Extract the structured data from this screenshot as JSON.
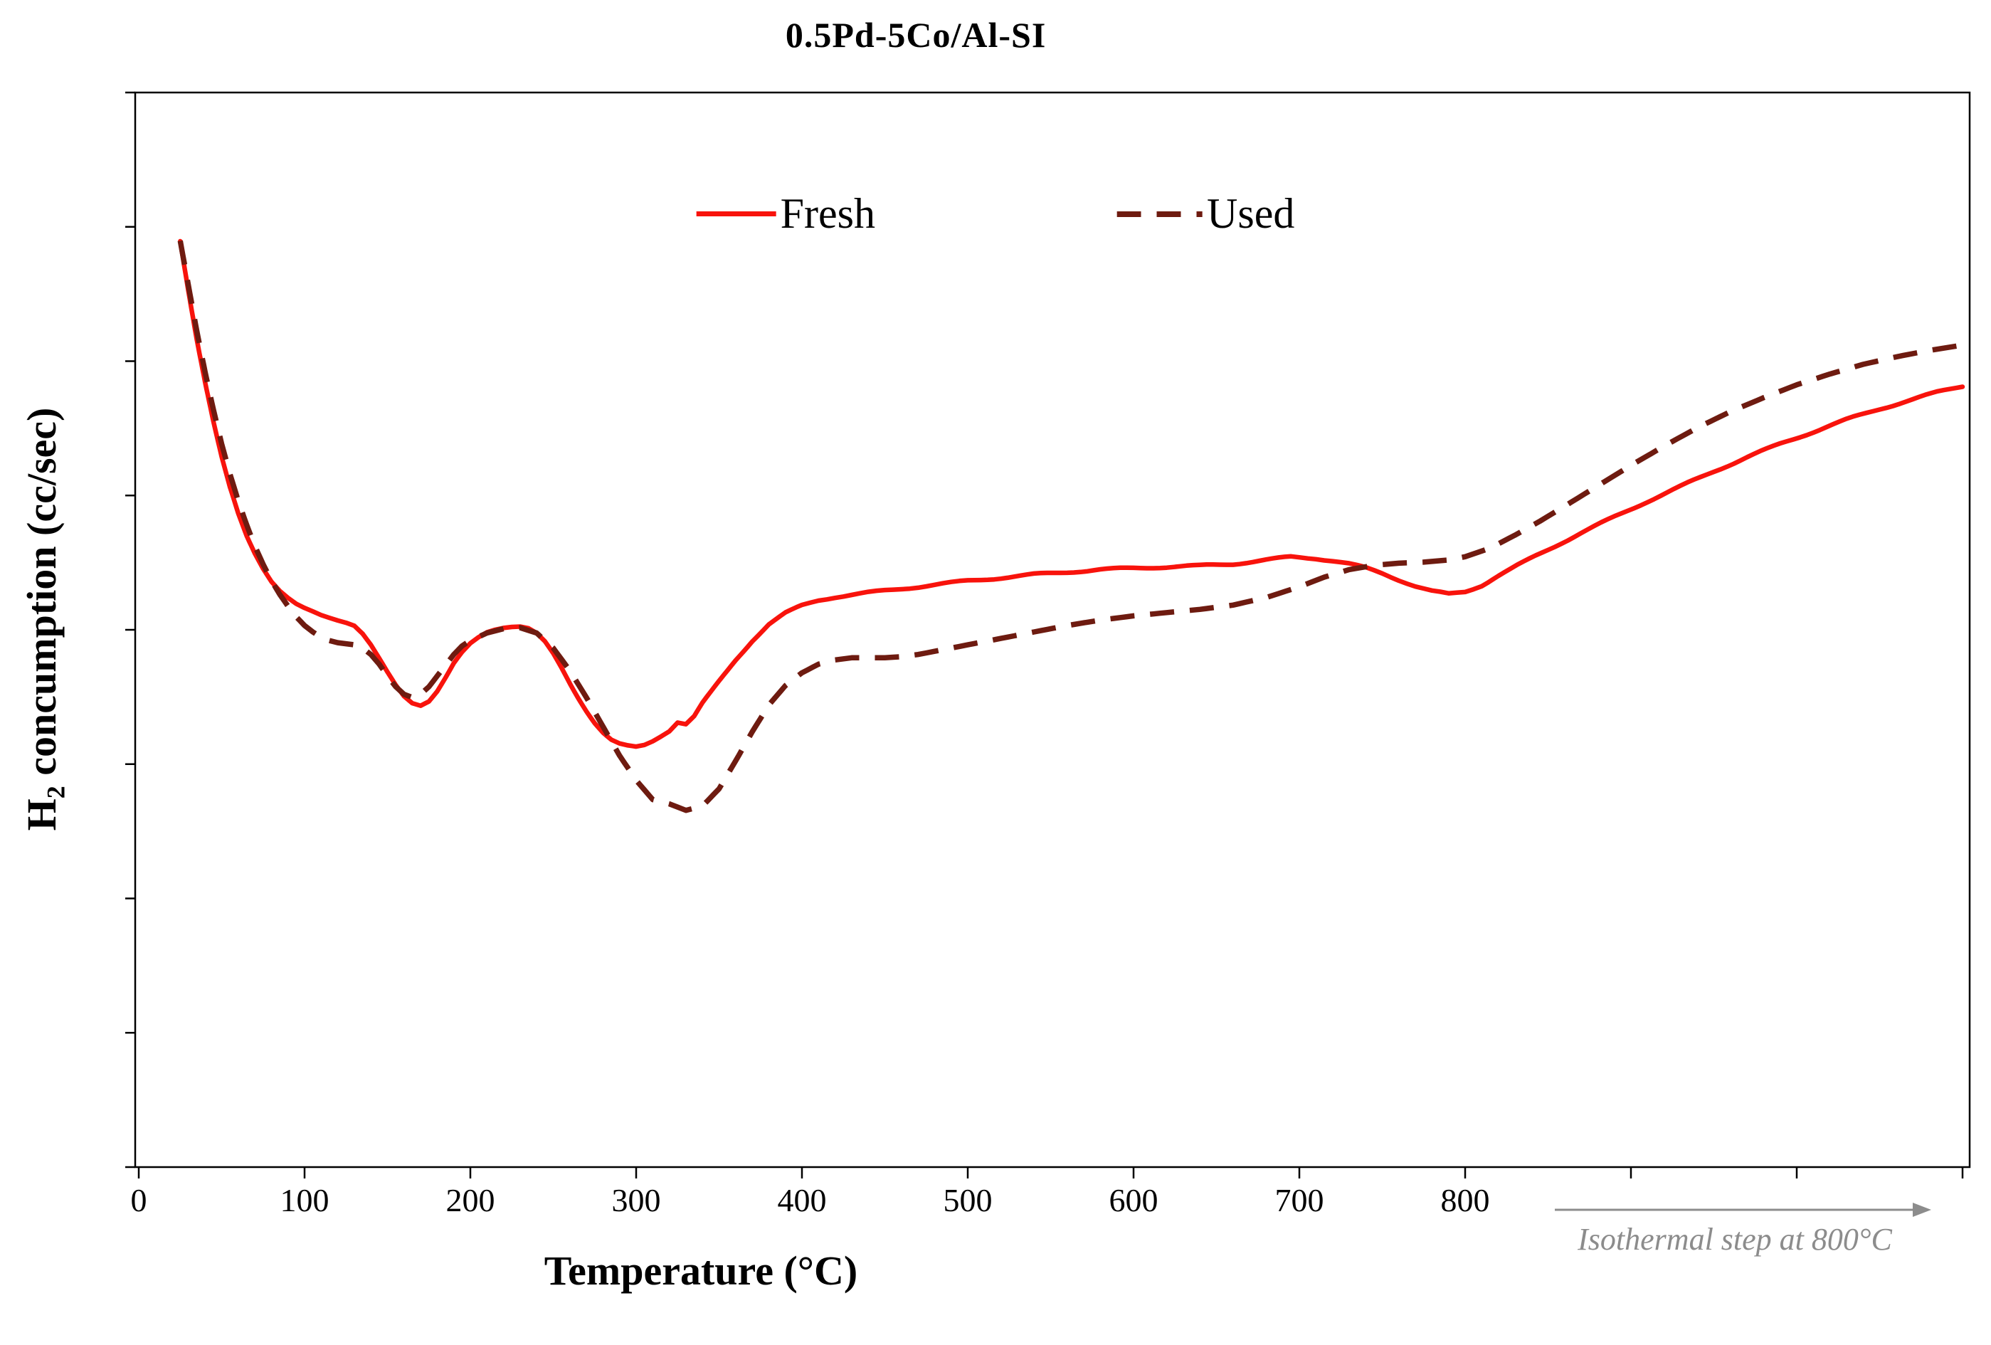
{
  "title": "0.5Pd-5Co/Al-SI",
  "y_axis_label": {
    "prefix": "H",
    "subscript": "2",
    "rest": " concumption (cc/sec)"
  },
  "x_axis_label": "Temperature (°C)",
  "annotation": {
    "text": "Isothermal step at 800°C",
    "color": "#8c8c8c"
  },
  "legend": [
    {
      "label": "Fresh",
      "color": "#f8130c",
      "style": "solid"
    },
    {
      "label": "Used",
      "color": "#6e1b10",
      "style": "dashed"
    }
  ],
  "chart_data": {
    "type": "line",
    "title": "0.5Pd-5Co/Al-SI",
    "xlabel": "Temperature (°C)",
    "ylabel": "H2 concumption (cc/sec)",
    "x_ticks_labeled": [
      0,
      100,
      200,
      300,
      400,
      500,
      600,
      700,
      800
    ],
    "x_ticks_unlabeled": [
      900,
      1000,
      1100
    ],
    "y_tick_labels": [],
    "y_tick_count": 9,
    "xlim": [
      0,
      1105
    ],
    "ylim": [
      0,
      1
    ],
    "grid": false,
    "legend_position": "top-center-inside",
    "x_axis_note": "axis continues unlabeled past 800 for isothermal step at 800°C",
    "y_units": "arbitrary (tick marks shown without numeric labels)",
    "series": [
      {
        "name": "Fresh",
        "color": "#f8130c",
        "style": "solid",
        "points": [
          [
            25,
            0.862
          ],
          [
            30,
            0.815
          ],
          [
            35,
            0.77
          ],
          [
            40,
            0.73
          ],
          [
            45,
            0.693
          ],
          [
            50,
            0.66
          ],
          [
            55,
            0.632
          ],
          [
            60,
            0.608
          ],
          [
            65,
            0.588
          ],
          [
            70,
            0.572
          ],
          [
            75,
            0.558
          ],
          [
            80,
            0.546
          ],
          [
            85,
            0.537
          ],
          [
            90,
            0.53
          ],
          [
            95,
            0.524
          ],
          [
            100,
            0.52
          ],
          [
            105,
            0.517
          ],
          [
            110,
            0.514
          ],
          [
            115,
            0.512
          ],
          [
            120,
            0.51
          ],
          [
            125,
            0.508
          ],
          [
            130,
            0.505
          ],
          [
            135,
            0.497
          ],
          [
            140,
            0.486
          ],
          [
            145,
            0.473
          ],
          [
            150,
            0.46
          ],
          [
            155,
            0.448
          ],
          [
            160,
            0.438
          ],
          [
            165,
            0.432
          ],
          [
            170,
            0.43
          ],
          [
            175,
            0.434
          ],
          [
            180,
            0.443
          ],
          [
            185,
            0.455
          ],
          [
            190,
            0.468
          ],
          [
            195,
            0.478
          ],
          [
            200,
            0.486
          ],
          [
            205,
            0.492
          ],
          [
            210,
            0.497
          ],
          [
            215,
            0.5
          ],
          [
            220,
            0.502
          ],
          [
            225,
            0.503
          ],
          [
            230,
            0.503
          ],
          [
            235,
            0.501
          ],
          [
            240,
            0.496
          ],
          [
            245,
            0.488
          ],
          [
            250,
            0.477
          ],
          [
            255,
            0.464
          ],
          [
            260,
            0.45
          ],
          [
            265,
            0.437
          ],
          [
            270,
            0.425
          ],
          [
            275,
            0.414
          ],
          [
            280,
            0.405
          ],
          [
            285,
            0.398
          ],
          [
            290,
            0.394
          ],
          [
            295,
            0.392
          ],
          [
            300,
            0.391
          ],
          [
            305,
            0.393
          ],
          [
            310,
            0.397
          ],
          [
            315,
            0.402
          ],
          [
            320,
            0.407
          ],
          [
            325,
            0.415
          ],
          [
            330,
            0.413
          ],
          [
            335,
            0.42
          ],
          [
            340,
            0.432
          ],
          [
            350,
            0.452
          ],
          [
            360,
            0.472
          ],
          [
            370,
            0.49
          ],
          [
            380,
            0.505
          ],
          [
            390,
            0.515
          ],
          [
            400,
            0.522
          ],
          [
            410,
            0.527
          ],
          [
            420,
            0.53
          ],
          [
            430,
            0.532
          ],
          [
            440,
            0.534
          ],
          [
            450,
            0.536
          ],
          [
            460,
            0.538
          ],
          [
            470,
            0.54
          ],
          [
            480,
            0.542
          ],
          [
            490,
            0.544
          ],
          [
            500,
            0.546
          ],
          [
            520,
            0.549
          ],
          [
            540,
            0.552
          ],
          [
            560,
            0.554
          ],
          [
            580,
            0.556
          ],
          [
            600,
            0.557
          ],
          [
            620,
            0.558
          ],
          [
            640,
            0.559
          ],
          [
            660,
            0.561
          ],
          [
            680,
            0.565
          ],
          [
            695,
            0.568
          ],
          [
            710,
            0.567
          ],
          [
            720,
            0.565
          ],
          [
            730,
            0.562
          ],
          [
            740,
            0.558
          ],
          [
            750,
            0.553
          ],
          [
            760,
            0.547
          ],
          [
            770,
            0.541
          ],
          [
            780,
            0.536
          ],
          [
            790,
            0.533
          ],
          [
            800,
            0.535
          ],
          [
            810,
            0.541
          ],
          [
            820,
            0.55
          ],
          [
            835,
            0.562
          ],
          [
            850,
            0.574
          ],
          [
            870,
            0.59
          ],
          [
            890,
            0.605
          ],
          [
            910,
            0.62
          ],
          [
            930,
            0.634
          ],
          [
            950,
            0.648
          ],
          [
            970,
            0.661
          ],
          [
            990,
            0.673
          ],
          [
            1010,
            0.684
          ],
          [
            1030,
            0.695
          ],
          [
            1050,
            0.705
          ],
          [
            1070,
            0.714
          ],
          [
            1085,
            0.721
          ],
          [
            1100,
            0.727
          ]
        ]
      },
      {
        "name": "Used",
        "color": "#6e1b10",
        "style": "dashed",
        "points": [
          [
            25,
            0.862
          ],
          [
            30,
            0.82
          ],
          [
            35,
            0.778
          ],
          [
            40,
            0.74
          ],
          [
            45,
            0.705
          ],
          [
            50,
            0.673
          ],
          [
            55,
            0.645
          ],
          [
            60,
            0.62
          ],
          [
            65,
            0.598
          ],
          [
            70,
            0.578
          ],
          [
            75,
            0.561
          ],
          [
            80,
            0.546
          ],
          [
            85,
            0.533
          ],
          [
            90,
            0.522
          ],
          [
            95,
            0.512
          ],
          [
            100,
            0.504
          ],
          [
            105,
            0.498
          ],
          [
            110,
            0.493
          ],
          [
            115,
            0.49
          ],
          [
            120,
            0.488
          ],
          [
            125,
            0.487
          ],
          [
            130,
            0.486
          ],
          [
            135,
            0.483
          ],
          [
            140,
            0.477
          ],
          [
            145,
            0.468
          ],
          [
            150,
            0.457
          ],
          [
            155,
            0.447
          ],
          [
            160,
            0.44
          ],
          [
            165,
            0.437
          ],
          [
            170,
            0.44
          ],
          [
            175,
            0.447
          ],
          [
            180,
            0.457
          ],
          [
            185,
            0.467
          ],
          [
            190,
            0.477
          ],
          [
            195,
            0.485
          ],
          [
            200,
            0.49
          ],
          [
            210,
            0.497
          ],
          [
            220,
            0.501
          ],
          [
            230,
            0.502
          ],
          [
            240,
            0.497
          ],
          [
            250,
            0.483
          ],
          [
            260,
            0.462
          ],
          [
            270,
            0.437
          ],
          [
            280,
            0.41
          ],
          [
            290,
            0.383
          ],
          [
            300,
            0.36
          ],
          [
            310,
            0.342
          ],
          [
            320,
            0.338
          ],
          [
            330,
            0.332
          ],
          [
            340,
            0.336
          ],
          [
            350,
            0.352
          ],
          [
            360,
            0.378
          ],
          [
            370,
            0.405
          ],
          [
            380,
            0.43
          ],
          [
            390,
            0.448
          ],
          [
            400,
            0.46
          ],
          [
            410,
            0.468
          ],
          [
            420,
            0.472
          ],
          [
            430,
            0.474
          ],
          [
            440,
            0.474
          ],
          [
            450,
            0.474
          ],
          [
            460,
            0.475
          ],
          [
            470,
            0.477
          ],
          [
            480,
            0.48
          ],
          [
            490,
            0.483
          ],
          [
            500,
            0.486
          ],
          [
            520,
            0.492
          ],
          [
            540,
            0.498
          ],
          [
            560,
            0.504
          ],
          [
            580,
            0.509
          ],
          [
            600,
            0.513
          ],
          [
            620,
            0.516
          ],
          [
            640,
            0.519
          ],
          [
            660,
            0.523
          ],
          [
            680,
            0.53
          ],
          [
            700,
            0.54
          ],
          [
            715,
            0.549
          ],
          [
            730,
            0.556
          ],
          [
            745,
            0.56
          ],
          [
            760,
            0.562
          ],
          [
            775,
            0.563
          ],
          [
            790,
            0.565
          ],
          [
            800,
            0.568
          ],
          [
            815,
            0.576
          ],
          [
            830,
            0.588
          ],
          [
            845,
            0.601
          ],
          [
            860,
            0.615
          ],
          [
            880,
            0.634
          ],
          [
            900,
            0.653
          ],
          [
            920,
            0.671
          ],
          [
            940,
            0.688
          ],
          [
            960,
            0.703
          ],
          [
            980,
            0.716
          ],
          [
            1000,
            0.728
          ],
          [
            1020,
            0.738
          ],
          [
            1040,
            0.747
          ],
          [
            1060,
            0.754
          ],
          [
            1080,
            0.76
          ],
          [
            1100,
            0.765
          ]
        ]
      }
    ],
    "annotation": "Isothermal step at 800°C"
  }
}
